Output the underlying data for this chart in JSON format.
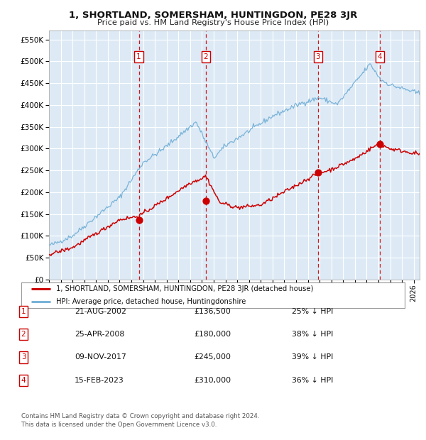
{
  "title": "1, SHORTLAND, SOMERSHAM, HUNTINGDON, PE28 3JR",
  "subtitle": "Price paid vs. HM Land Registry's House Price Index (HPI)",
  "legend_line1": "1, SHORTLAND, SOMERSHAM, HUNTINGDON, PE28 3JR (detached house)",
  "legend_line2": "HPI: Average price, detached house, Huntingdonshire",
  "footer": "Contains HM Land Registry data © Crown copyright and database right 2024.\nThis data is licensed under the Open Government Licence v3.0.",
  "transactions": [
    {
      "num": 1,
      "date": "21-AUG-2002",
      "price": 136500,
      "pct": "25% ↓ HPI",
      "year_x": 2002.64
    },
    {
      "num": 2,
      "date": "25-APR-2008",
      "price": 180000,
      "pct": "38% ↓ HPI",
      "year_x": 2008.32
    },
    {
      "num": 3,
      "date": "09-NOV-2017",
      "price": 245000,
      "pct": "39% ↓ HPI",
      "year_x": 2017.86
    },
    {
      "num": 4,
      "date": "15-FEB-2023",
      "price": 310000,
      "pct": "36% ↓ HPI",
      "year_x": 2023.13
    }
  ],
  "hpi_color": "#7ab3d8",
  "price_color": "#cc0000",
  "dot_color": "#cc0000",
  "vline_color": "#cc0000",
  "plot_bg_color": "#ddeaf6",
  "grid_color": "#ffffff",
  "ylim": [
    0,
    570000
  ],
  "xlim_start": 1995.0,
  "xlim_end": 2026.5,
  "yticks": [
    0,
    50000,
    100000,
    150000,
    200000,
    250000,
    300000,
    350000,
    400000,
    450000,
    500000,
    550000
  ],
  "xticks": [
    1995,
    1996,
    1997,
    1998,
    1999,
    2000,
    2001,
    2002,
    2003,
    2004,
    2005,
    2006,
    2007,
    2008,
    2009,
    2010,
    2011,
    2012,
    2013,
    2014,
    2015,
    2016,
    2017,
    2018,
    2019,
    2020,
    2021,
    2022,
    2023,
    2024,
    2025,
    2026
  ]
}
